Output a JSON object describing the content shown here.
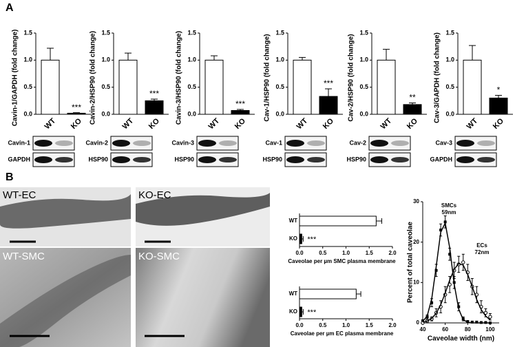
{
  "panel_labels": [
    "A",
    "B"
  ],
  "images": [
    "WT-EC",
    "KO-EC",
    "WT-SMC",
    "KO-SMC"
  ],
  "chart_data": [
    {
      "type": "bar",
      "ylabel": "Cavin-1/GAPDH (fold change)",
      "categories": [
        "WT",
        "KO"
      ],
      "values": [
        1.0,
        0.02
      ],
      "errors": [
        0.22,
        0.01
      ],
      "colors": [
        "#ffffff",
        "#000000"
      ],
      "significance": "***",
      "ylim": [
        0,
        1.5
      ],
      "yticks": [
        {
          "value": 0,
          "label": "0.0"
        },
        0.5,
        {
          "value": 1,
          "label": "1.0"
        },
        1.5
      ],
      "blot_labels": [
        "Cavin-1",
        "GAPDH"
      ]
    },
    {
      "type": "bar",
      "ylabel": "Cavin-2/HSP90 (fold change)",
      "categories": [
        "WT",
        "KO"
      ],
      "values": [
        1.0,
        0.25
      ],
      "errors": [
        0.13,
        0.03
      ],
      "colors": [
        "#ffffff",
        "#000000"
      ],
      "significance": "***",
      "ylim": [
        0,
        1.5
      ],
      "yticks": [
        {
          "value": 0,
          "label": "0.0"
        },
        0.5,
        {
          "value": 1,
          "label": "1.0"
        },
        1.5
      ],
      "blot_labels": [
        "Cavin-2",
        "HSP90"
      ]
    },
    {
      "type": "bar",
      "ylabel": "Cavin-3/HSP90 (fold change)",
      "categories": [
        "WT",
        "KO"
      ],
      "values": [
        1.0,
        0.07
      ],
      "errors": [
        0.08,
        0.02
      ],
      "colors": [
        "#ffffff",
        "#000000"
      ],
      "significance": "***",
      "ylim": [
        0,
        1.5
      ],
      "yticks": [
        {
          "value": 0,
          "label": "0.0"
        },
        0.5,
        {
          "value": 1,
          "label": "1.0"
        },
        1.5
      ],
      "blot_labels": [
        "Cavin-3",
        "HSP90"
      ]
    },
    {
      "type": "bar",
      "ylabel": "Cav-1/HSP90 (fold change)",
      "categories": [
        "WT",
        "KO"
      ],
      "values": [
        1.0,
        0.33
      ],
      "errors": [
        0.05,
        0.14
      ],
      "colors": [
        "#ffffff",
        "#000000"
      ],
      "significance": "***",
      "ylim": [
        0,
        1.5
      ],
      "yticks": [
        {
          "value": 0,
          "label": "0.0"
        },
        0.5,
        {
          "value": 1,
          "label": "1.0"
        },
        1.5
      ],
      "blot_labels": [
        "Cav-1",
        "HSP90"
      ]
    },
    {
      "type": "bar",
      "ylabel": "Cav-2/HSP90 (fold change)",
      "categories": [
        "WT",
        "KO"
      ],
      "values": [
        1.0,
        0.18
      ],
      "errors": [
        0.2,
        0.03
      ],
      "colors": [
        "#ffffff",
        "#000000"
      ],
      "significance": "**",
      "ylim": [
        0,
        1.5
      ],
      "yticks": [
        {
          "value": 0,
          "label": "0.0"
        },
        0.5,
        {
          "value": 1,
          "label": "1.0"
        },
        1.5
      ],
      "blot_labels": [
        "Cav-2",
        "HSP90"
      ]
    },
    {
      "type": "bar",
      "ylabel": "Cav-3/GAPDH (fold change)",
      "categories": [
        "WT",
        "KO"
      ],
      "values": [
        1.0,
        0.3
      ],
      "errors": [
        0.27,
        0.05
      ],
      "colors": [
        "#ffffff",
        "#000000"
      ],
      "significance": "*",
      "ylim": [
        0,
        1.5
      ],
      "yticks": [
        {
          "value": 0,
          "label": "0.0"
        },
        0.5,
        {
          "value": 1,
          "label": "1.0"
        },
        1.5
      ],
      "blot_labels": [
        "Cav-3",
        "GAPDH"
      ]
    },
    {
      "type": "hbar",
      "xlabel": "Caveolae per µm SMC plasma membrane",
      "categories": [
        "WT",
        "KO"
      ],
      "values": [
        1.65,
        0.05
      ],
      "errors": [
        0.12,
        0.03
      ],
      "colors": [
        "#ffffff",
        "#000000"
      ],
      "significance": "***",
      "xlim": [
        0,
        2
      ],
      "xticks": [
        {
          "value": 0,
          "label": "0.0"
        },
        0.5,
        {
          "value": 1,
          "label": "1.0"
        },
        1.5,
        {
          "value": 2,
          "label": "2.0"
        }
      ]
    },
    {
      "type": "hbar",
      "xlabel": "Caveolae per µm EC plasma membrane",
      "categories": [
        "WT",
        "KO"
      ],
      "values": [
        1.22,
        0.05
      ],
      "errors": [
        0.1,
        0.03
      ],
      "colors": [
        "#ffffff",
        "#000000"
      ],
      "significance": "***",
      "xlim": [
        0,
        2
      ],
      "xticks": [
        {
          "value": 0,
          "label": "0.0"
        },
        0.5,
        {
          "value": 1,
          "label": "1.0"
        },
        1.5,
        {
          "value": 2,
          "label": "2.0"
        }
      ]
    },
    {
      "type": "line",
      "xlabel": "Caveolae width (nm)",
      "ylabel": "Percent of total caveolae",
      "x": [
        40,
        44,
        48,
        52,
        56,
        60,
        64,
        68,
        72,
        76,
        80,
        84,
        88,
        92,
        96,
        100
      ],
      "series": [
        {
          "color": "#000000",
          "marker": "square",
          "values": [
            0.5,
            1.5,
            5,
            13,
            23,
            25,
            17,
            10,
            4,
            1,
            0.3,
            0.2,
            0.2,
            0.1,
            0.1,
            0
          ],
          "errors": [
            0.3,
            0.5,
            1,
            1.5,
            1.5,
            1.5,
            1.5,
            1.5,
            1,
            0.5,
            0.3,
            0.2,
            0.2,
            0.1,
            0.1,
            0.1
          ]
        },
        {
          "color": "#000000",
          "marker": "circle",
          "values": [
            0,
            0.5,
            1,
            2.5,
            4,
            7,
            9.5,
            13,
            14.5,
            15,
            12.5,
            9,
            7,
            4,
            2.5,
            1.5
          ],
          "errors": [
            0.2,
            0.3,
            0.5,
            1,
            1.5,
            2,
            2,
            2,
            2,
            2,
            2,
            2,
            2,
            1.5,
            1,
            0.8
          ]
        },
        {
          "color": "#000000",
          "values": [
            0.35,
            1.75,
            6,
            14,
            22.5,
            24.7,
            18.6,
            9.6,
            3.4,
            0.8,
            0.14,
            0.02,
            0,
            0,
            0,
            0
          ]
        },
        {
          "color": "#000000",
          "values": [
            0.16,
            0.46,
            1.1,
            2.4,
            4.5,
            7.4,
            10.6,
            13.3,
            14.7,
            14.3,
            12,
            9,
            5.8,
            3.3,
            1.7,
            0.74
          ]
        }
      ],
      "annotations": [
        "SMCs",
        "59nm",
        "ECs",
        "72nm"
      ],
      "xlim": [
        40,
        108
      ],
      "xticks": [
        40,
        60,
        80,
        100
      ],
      "ylim": [
        0,
        30
      ],
      "yticks": [
        0,
        10,
        20,
        30
      ]
    }
  ]
}
